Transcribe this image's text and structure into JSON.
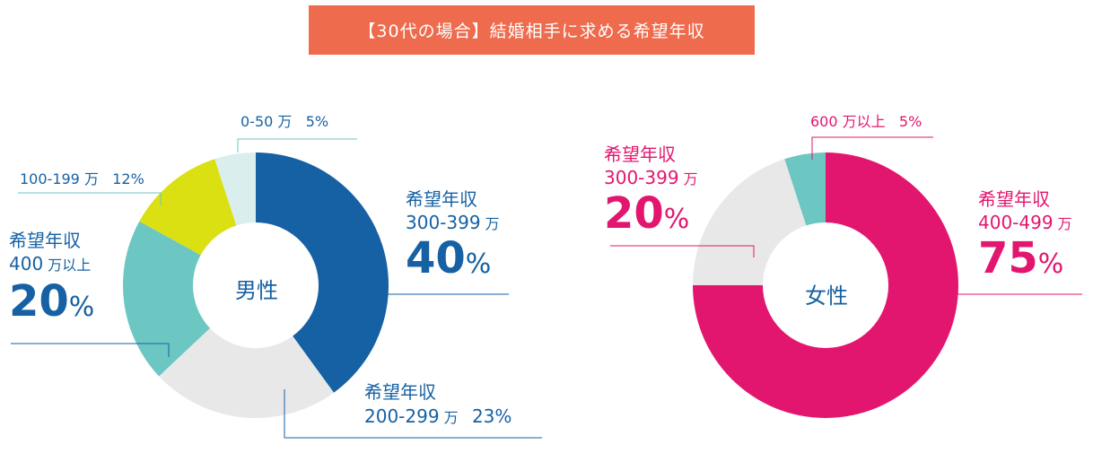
{
  "title": "【30代の場合】結婚相手に求める希望年収",
  "colors": {
    "banner": "#ee6b4d",
    "male_text": "#1661a3",
    "female_text": "#e3166f"
  },
  "chart_data": [
    {
      "type": "pie",
      "center_label": "男性",
      "slices": [
        {
          "label": "希望年収 300-399万",
          "value": 40,
          "color": "#1661a3"
        },
        {
          "label": "希望年収 200-299万",
          "value": 23,
          "color": "#e8e8e8"
        },
        {
          "label": "希望年収 400万以上",
          "value": 20,
          "color": "#6cc6c2"
        },
        {
          "label": "100-199万",
          "value": 12,
          "color": "#dbe012"
        },
        {
          "label": "0-50万",
          "value": 5,
          "color": "#d9eeed"
        }
      ]
    },
    {
      "type": "pie",
      "center_label": "女性",
      "slices": [
        {
          "label": "希望年収 400-499万",
          "value": 75,
          "color": "#e3166f"
        },
        {
          "label": "希望年収 300-399万",
          "value": 20,
          "color": "#e8e8e8"
        },
        {
          "label": "600万以上",
          "value": 5,
          "color": "#6cc6c2"
        }
      ]
    }
  ],
  "labels": {
    "male": {
      "s0_head": "希望年収",
      "s0_range": "300-399",
      "s0_unit": "万",
      "s0_pct": "40",
      "s1_head": "希望年収",
      "s1_range": "200-299",
      "s1_unit": "万",
      "s1_pct": "23%",
      "s2_head": "希望年収",
      "s2_range": "400",
      "s2_unit": "万以上",
      "s2_pct": "20",
      "s3_range": "100-199",
      "s3_unit": "万",
      "s3_pct": "12%",
      "s4_range": "0-50",
      "s4_unit": "万",
      "s4_pct": "5%"
    },
    "female": {
      "s0_head": "希望年収",
      "s0_range": "400-499",
      "s0_unit": "万",
      "s0_pct": "75",
      "s1_head": "希望年収",
      "s1_range": "300-399",
      "s1_unit": "万",
      "s1_pct": "20",
      "s2_range": "600",
      "s2_unit": "万以上",
      "s2_pct": "5%"
    },
    "percent_sign": "%"
  }
}
